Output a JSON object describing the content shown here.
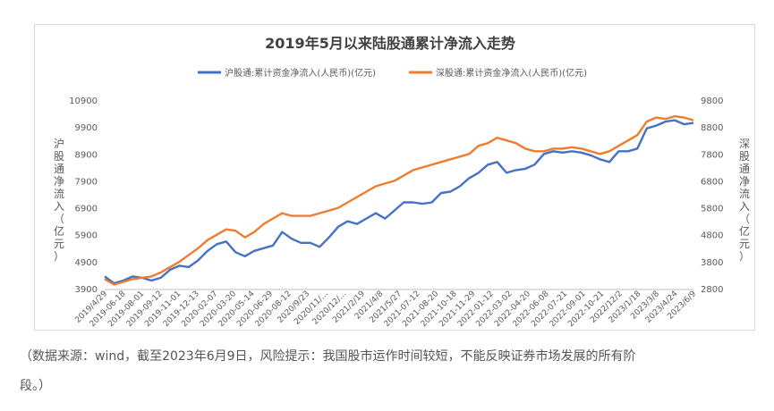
{
  "chart_data": {
    "type": "line",
    "title": "2019年5月以来陆股通累计净流入走势",
    "ylabel_left": "沪股通净流入（亿元）",
    "ylabel_right": "深股通净流入（亿元）",
    "legend_position": "top",
    "grid": false,
    "y_left": {
      "ticks": [
        3900,
        4900,
        5900,
        6900,
        7900,
        8900,
        9900,
        10900
      ],
      "range": [
        3900,
        10900
      ]
    },
    "y_right": {
      "ticks": [
        2800,
        3800,
        4800,
        5800,
        6800,
        7800,
        8800,
        9800
      ],
      "range": [
        2800,
        9800
      ]
    },
    "x_tick_labels": [
      "2019/4/29",
      "2019-06-18",
      "2019-08-01",
      "2019-09-12",
      "2019-11-01",
      "2019-12-13",
      "2020-02-07",
      "2020-03-20",
      "2020-05-14",
      "2020-06-29",
      "2020-08-12",
      "2020/9/23",
      "2020/11/...",
      "2020/12/...",
      "2021/2/19",
      "2021/4/8",
      "2021/5/27",
      "2021-07-12",
      "2021-08-20",
      "2021-10-18",
      "2021-11-29",
      "2022-01-12",
      "2022-03-02",
      "2022-04-20",
      "2022-06-08",
      "2022-07-21",
      "2022-09-01",
      "2022-10-21",
      "2022/12/2",
      "2023/1/18",
      "2023/3/8",
      "2023/4/24",
      "2023/6/9"
    ],
    "series": [
      {
        "name": "沪股通:累计资金净流入(人民币)(亿元)",
        "axis": "left",
        "color": "#4472c4",
        "values": [
          4350,
          4100,
          4200,
          4350,
          4300,
          4200,
          4300,
          4600,
          4750,
          4700,
          4950,
          5300,
          5550,
          5650,
          5250,
          5100,
          5300,
          5400,
          5500,
          6000,
          5750,
          5600,
          5600,
          5450,
          5800,
          6200,
          6400,
          6300,
          6500,
          6700,
          6500,
          6800,
          7100,
          7100,
          7050,
          7100,
          7450,
          7500,
          7700,
          8000,
          8200,
          8500,
          8600,
          8200,
          8300,
          8350,
          8500,
          8900,
          9000,
          8950,
          9000,
          8950,
          8850,
          8700,
          8600,
          9000,
          9000,
          9100,
          9850,
          9950,
          10100,
          10150,
          10000,
          10050
        ]
      },
      {
        "name": "深股通:累计资金净流入(人民币)(亿元)",
        "axis": "right",
        "color": "#ed7d31",
        "values": [
          3150,
          2950,
          3050,
          3150,
          3200,
          3250,
          3400,
          3600,
          3800,
          4050,
          4300,
          4600,
          4800,
          5000,
          4950,
          4700,
          4900,
          5200,
          5400,
          5600,
          5500,
          5500,
          5500,
          5600,
          5700,
          5800,
          6000,
          6200,
          6400,
          6600,
          6700,
          6800,
          7000,
          7200,
          7300,
          7400,
          7500,
          7600,
          7700,
          7800,
          8100,
          8200,
          8400,
          8300,
          8200,
          8000,
          7900,
          7900,
          8000,
          8000,
          8050,
          8000,
          7900,
          7800,
          7900,
          8100,
          8300,
          8500,
          9000,
          9150,
          9100,
          9200,
          9150,
          9050
        ]
      }
    ]
  },
  "caption": {
    "line1": "（数据来源：wind，截至2023年6月9日，风险提示：我国股市运作时间较短，不能反映证券市场发展的所有阶",
    "line2": "段。）"
  }
}
